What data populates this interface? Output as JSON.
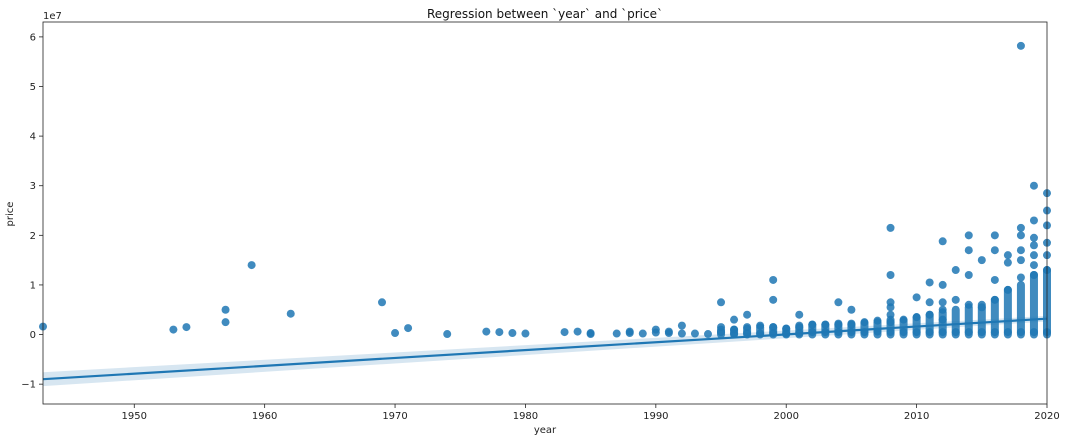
{
  "chart_data": {
    "type": "scatter",
    "title": "Regression between `year` and `price`",
    "xlabel": "year",
    "ylabel": "price",
    "y_scale_label": "1e7",
    "xlim": [
      1943,
      2020
    ],
    "ylim": [
      -1.4,
      6.3
    ],
    "x_ticks": [
      1950,
      1960,
      1970,
      1980,
      1990,
      2000,
      2010,
      2020
    ],
    "y_ticks": [
      -1,
      0,
      1,
      2,
      3,
      4,
      5,
      6
    ],
    "grid": false,
    "colors": {
      "points": "#1f77b4",
      "line": "#1f77b4",
      "band": "#1f77b4"
    },
    "regression": {
      "x": [
        1943,
        2020
      ],
      "y": [
        -0.9,
        0.32
      ],
      "ci_width": 0.14
    },
    "points": [
      [
        1943,
        0.16
      ],
      [
        1953,
        0.1
      ],
      [
        1954,
        0.15
      ],
      [
        1957,
        0.5
      ],
      [
        1957,
        0.25
      ],
      [
        1959,
        1.4
      ],
      [
        1962,
        0.42
      ],
      [
        1969,
        0.65
      ],
      [
        1970,
        0.03
      ],
      [
        1971,
        0.13
      ],
      [
        1974,
        0.01
      ],
      [
        1977,
        0.06
      ],
      [
        1978,
        0.05
      ],
      [
        1979,
        0.03
      ],
      [
        1980,
        0.02
      ],
      [
        1983,
        0.05
      ],
      [
        1984,
        0.06
      ],
      [
        1985,
        0.03
      ],
      [
        1985,
        0.01
      ],
      [
        1987,
        0.02
      ],
      [
        1988,
        0.06
      ],
      [
        1988,
        0.03
      ],
      [
        1989,
        0.02
      ],
      [
        1990,
        0.1
      ],
      [
        1990,
        0.04
      ],
      [
        1991,
        0.03
      ],
      [
        1991,
        0.06
      ],
      [
        1992,
        0.18
      ],
      [
        1992,
        0.02
      ],
      [
        1993,
        0.02
      ],
      [
        1994,
        0.01
      ],
      [
        1995,
        0.65
      ],
      [
        1995,
        0.15
      ],
      [
        1995,
        0.05
      ],
      [
        1996,
        0.3
      ],
      [
        1996,
        0.1
      ],
      [
        1996,
        0.02
      ],
      [
        1997,
        0.4
      ],
      [
        1997,
        0.15
      ],
      [
        1997,
        0.03
      ],
      [
        1998,
        0.18
      ],
      [
        1998,
        0.02
      ],
      [
        1999,
        1.1
      ],
      [
        1999,
        0.7
      ],
      [
        1999,
        0.15
      ],
      [
        1999,
        0.03
      ],
      [
        2000,
        0.12
      ],
      [
        2000,
        0.02
      ],
      [
        2001,
        0.4
      ],
      [
        2001,
        0.15
      ],
      [
        2001,
        0.03
      ],
      [
        2002,
        0.2
      ],
      [
        2002,
        0.05
      ],
      [
        2003,
        0.2
      ],
      [
        2003,
        0.05
      ],
      [
        2004,
        0.65
      ],
      [
        2004,
        0.2
      ],
      [
        2004,
        0.05
      ],
      [
        2005,
        0.5
      ],
      [
        2005,
        0.2
      ],
      [
        2005,
        0.05
      ],
      [
        2006,
        0.25
      ],
      [
        2006,
        0.05
      ],
      [
        2007,
        0.28
      ],
      [
        2007,
        0.06
      ],
      [
        2008,
        2.15
      ],
      [
        2008,
        1.2
      ],
      [
        2008,
        0.65
      ],
      [
        2008,
        0.55
      ],
      [
        2008,
        0.4
      ],
      [
        2008,
        0.25
      ],
      [
        2008,
        0.05
      ],
      [
        2009,
        0.3
      ],
      [
        2009,
        0.05
      ],
      [
        2010,
        0.75
      ],
      [
        2010,
        0.35
      ],
      [
        2010,
        0.05
      ],
      [
        2011,
        1.05
      ],
      [
        2011,
        0.65
      ],
      [
        2011,
        0.4
      ],
      [
        2011,
        0.05
      ],
      [
        2012,
        1.88
      ],
      [
        2012,
        1.0
      ],
      [
        2012,
        0.65
      ],
      [
        2012,
        0.5
      ],
      [
        2012,
        0.3
      ],
      [
        2012,
        0.05
      ],
      [
        2013,
        1.3
      ],
      [
        2013,
        0.7
      ],
      [
        2013,
        0.05
      ],
      [
        2014,
        2.0
      ],
      [
        2014,
        1.7
      ],
      [
        2014,
        1.2
      ],
      [
        2014,
        0.6
      ],
      [
        2014,
        0.05
      ],
      [
        2015,
        1.5
      ],
      [
        2015,
        0.55
      ],
      [
        2015,
        0.05
      ],
      [
        2016,
        2.0
      ],
      [
        2016,
        1.7
      ],
      [
        2016,
        1.1
      ],
      [
        2016,
        0.7
      ],
      [
        2016,
        0.05
      ],
      [
        2017,
        1.6
      ],
      [
        2017,
        1.45
      ],
      [
        2017,
        0.9
      ],
      [
        2017,
        0.05
      ],
      [
        2018,
        5.82
      ],
      [
        2018,
        2.15
      ],
      [
        2018,
        2.0
      ],
      [
        2018,
        1.7
      ],
      [
        2018,
        1.5
      ],
      [
        2018,
        1.15
      ],
      [
        2018,
        0.05
      ],
      [
        2019,
        3.0
      ],
      [
        2019,
        2.3
      ],
      [
        2019,
        1.95
      ],
      [
        2019,
        1.8
      ],
      [
        2019,
        1.6
      ],
      [
        2019,
        1.4
      ],
      [
        2019,
        1.2
      ],
      [
        2019,
        0.05
      ],
      [
        2020,
        2.85
      ],
      [
        2020,
        2.5
      ],
      [
        2020,
        2.2
      ],
      [
        2020,
        1.85
      ],
      [
        2020,
        1.6
      ],
      [
        2020,
        1.3
      ],
      [
        2020,
        0.05
      ]
    ],
    "stacks": [
      [
        1995,
        0.0,
        0.1
      ],
      [
        1996,
        0.0,
        0.1
      ],
      [
        1997,
        0.0,
        0.12
      ],
      [
        1998,
        0.0,
        0.15
      ],
      [
        1999,
        0.0,
        0.15
      ],
      [
        2000,
        0.0,
        0.12
      ],
      [
        2001,
        0.0,
        0.18
      ],
      [
        2002,
        0.0,
        0.2
      ],
      [
        2003,
        0.0,
        0.2
      ],
      [
        2004,
        0.0,
        0.22
      ],
      [
        2005,
        0.0,
        0.22
      ],
      [
        2006,
        0.0,
        0.23
      ],
      [
        2007,
        0.0,
        0.25
      ],
      [
        2008,
        0.0,
        0.3
      ],
      [
        2009,
        0.0,
        0.28
      ],
      [
        2010,
        0.0,
        0.35
      ],
      [
        2011,
        0.0,
        0.4
      ],
      [
        2012,
        0.0,
        0.45
      ],
      [
        2013,
        0.0,
        0.5
      ],
      [
        2014,
        0.0,
        0.55
      ],
      [
        2015,
        0.0,
        0.6
      ],
      [
        2016,
        0.0,
        0.7
      ],
      [
        2017,
        0.0,
        0.9
      ],
      [
        2018,
        0.0,
        1.0
      ],
      [
        2019,
        0.0,
        1.2
      ],
      [
        2020,
        0.0,
        1.3
      ]
    ]
  }
}
